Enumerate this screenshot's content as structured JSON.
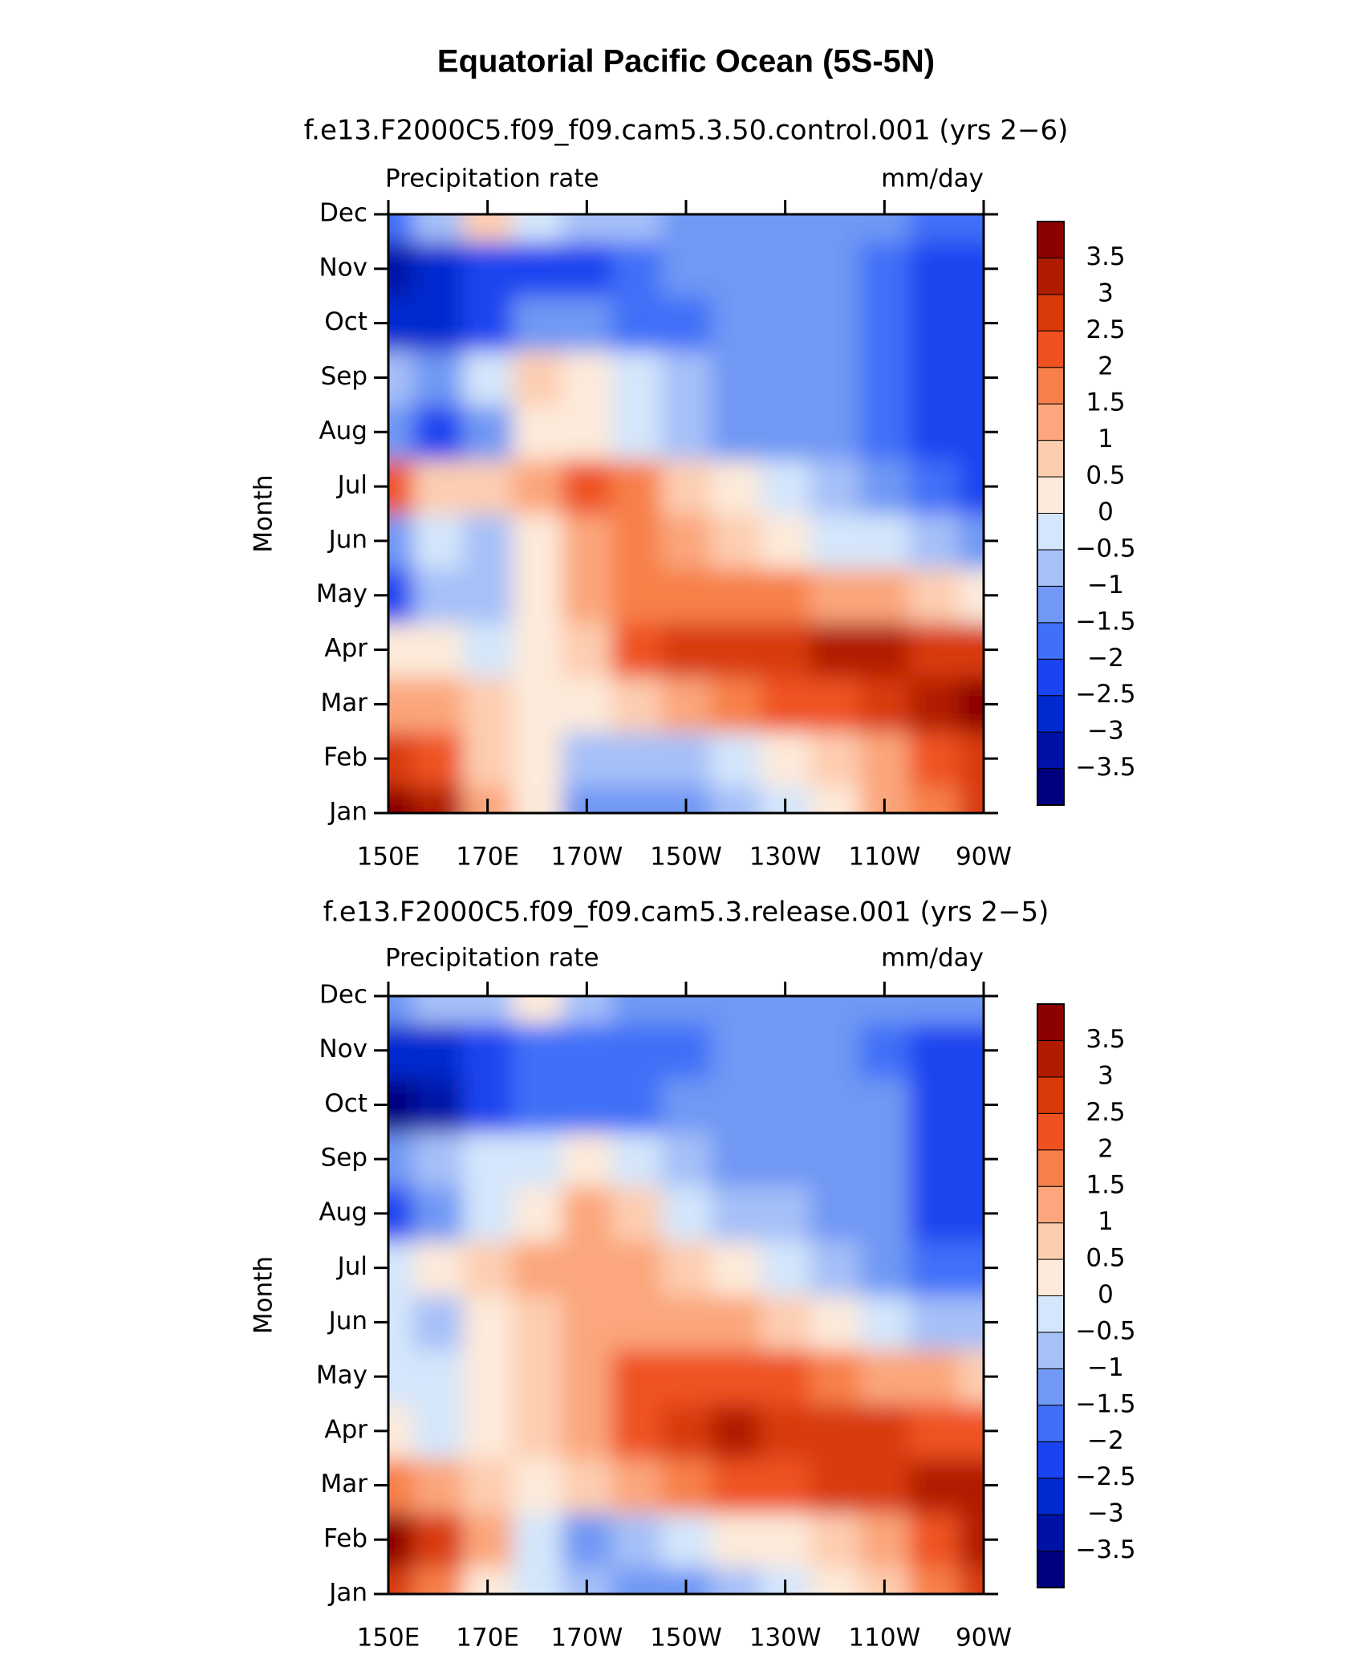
{
  "title": "Equatorial Pacific Ocean (5S-5N)",
  "chart_data": [
    {
      "type": "contour",
      "title": "f.e13.F2000C5.f09_f09.cam5.3.50.control.001 (yrs 2−6)",
      "left_label": "Precipitation rate",
      "right_label": "mm/day",
      "y_label": "Month",
      "x": [
        150,
        160,
        170,
        180,
        190,
        200,
        210,
        220,
        230,
        240,
        250,
        260,
        270
      ],
      "xlim": [
        150,
        270
      ],
      "xticks": [
        {
          "value": 150,
          "label": "150E"
        },
        {
          "value": 170,
          "label": "170E"
        },
        {
          "value": 190,
          "label": "170W"
        },
        {
          "value": 210,
          "label": "150W"
        },
        {
          "value": 230,
          "label": "130W"
        },
        {
          "value": 250,
          "label": "110W"
        },
        {
          "value": 270,
          "label": "90W"
        }
      ],
      "categories": [
        "Jan",
        "Feb",
        "Mar",
        "Apr",
        "May",
        "Jun",
        "Jul",
        "Aug",
        "Sep",
        "Oct",
        "Nov",
        "Dec"
      ],
      "z": [
        [
          3.8,
          3.2,
          1.2,
          0.2,
          -1,
          -1.2,
          -1,
          -0.6,
          -0.2,
          0.5,
          1.2,
          2,
          3
        ],
        [
          2.8,
          2.5,
          1,
          0.3,
          -0.7,
          -0.8,
          -0.5,
          0,
          0.5,
          1,
          1.5,
          2.2,
          3
        ],
        [
          1.5,
          1.2,
          0.7,
          0.3,
          0.2,
          1,
          1.5,
          2,
          2.3,
          2.5,
          3,
          3.5,
          3.8
        ],
        [
          0.5,
          0.2,
          -0.3,
          0.3,
          1,
          2.5,
          2.8,
          3,
          3,
          3.2,
          3.2,
          3,
          2.8
        ],
        [
          -2,
          -0.5,
          -0.5,
          0.5,
          1.3,
          2,
          2,
          2,
          1.8,
          1.5,
          1.2,
          1,
          0.5
        ],
        [
          -1,
          -0.3,
          -0.5,
          0.3,
          1.5,
          1.8,
          1.5,
          1,
          0.5,
          0,
          -0.3,
          -0.6,
          -1
        ],
        [
          2.5,
          0.8,
          0.8,
          1.3,
          2.3,
          1.8,
          1,
          0.2,
          -0.3,
          -0.8,
          -1.2,
          -1.5,
          -2
        ],
        [
          -1,
          -2,
          -1,
          0.3,
          0.5,
          0,
          -0.5,
          -1,
          -1.2,
          -1.3,
          -1.5,
          -2,
          -2.2
        ],
        [
          -0.8,
          -1.2,
          -0.3,
          1,
          0.3,
          -0.3,
          -0.8,
          -1,
          -1.2,
          -1.2,
          -1.5,
          -2,
          -2.2
        ],
        [
          -2.5,
          -2.5,
          -2,
          -1,
          -1.2,
          -1.5,
          -1.5,
          -1.4,
          -1.3,
          -1.3,
          -1.8,
          -2,
          -2.3
        ],
        [
          -3.3,
          -2.8,
          -2.2,
          -2,
          -2,
          -1.6,
          -1.3,
          -1.2,
          -1.2,
          -1.2,
          -1.8,
          -2,
          -2.3
        ],
        [
          -1.5,
          -0.5,
          0.7,
          -0.3,
          -0.5,
          -0.8,
          -1,
          -1,
          -1,
          -1,
          -1.3,
          -1.5,
          -1.8
        ]
      ],
      "levels": [
        {
          "value": -3.5,
          "label": "−3.5"
        },
        {
          "value": -3,
          "label": "−3"
        },
        {
          "value": -2.5,
          "label": "−2.5"
        },
        {
          "value": -2,
          "label": "−2"
        },
        {
          "value": -1.5,
          "label": "−1.5"
        },
        {
          "value": -1,
          "label": "−1"
        },
        {
          "value": -0.5,
          "label": "−0.5"
        },
        0,
        0.5,
        1,
        1.5,
        2,
        2.5,
        3,
        3.5
      ],
      "colors": [
        "#00007f",
        "#0012a6",
        "#002ad0",
        "#1a44f0",
        "#4070f8",
        "#7098f4",
        "#a6c0f8",
        "#d4e6fb",
        "#fdeada",
        "#fdcdb0",
        "#fba67c",
        "#f7804a",
        "#ef5220",
        "#d83a08",
        "#b01c02",
        "#8b0000"
      ]
    },
    {
      "type": "contour",
      "title": "f.e13.F2000C5.f09_f09.cam5.3.release.001 (yrs 2−5)",
      "left_label": "Precipitation rate",
      "right_label": "mm/day",
      "y_label": "Month",
      "x": [
        150,
        160,
        170,
        180,
        190,
        200,
        210,
        220,
        230,
        240,
        250,
        260,
        270
      ],
      "xlim": [
        150,
        270
      ],
      "xticks": [
        {
          "value": 150,
          "label": "150E"
        },
        {
          "value": 170,
          "label": "170E"
        },
        {
          "value": 190,
          "label": "170W"
        },
        {
          "value": 210,
          "label": "150W"
        },
        {
          "value": 230,
          "label": "130W"
        },
        {
          "value": 250,
          "label": "110W"
        },
        {
          "value": 270,
          "label": "90W"
        }
      ],
      "categories": [
        "Jan",
        "Feb",
        "Mar",
        "Apr",
        "May",
        "Jun",
        "Jul",
        "Aug",
        "Sep",
        "Oct",
        "Nov",
        "Dec"
      ],
      "z": [
        [
          2.8,
          2,
          0.5,
          0,
          -0.8,
          -1.2,
          -1,
          -0.6,
          -0.3,
          0.2,
          0.8,
          1.8,
          3
        ],
        [
          3.8,
          3,
          1.5,
          -0.3,
          -1,
          -0.7,
          -0.3,
          0.1,
          0.5,
          1,
          1.5,
          2.2,
          3.5
        ],
        [
          2,
          1.5,
          1,
          0.5,
          0.7,
          1.5,
          2,
          2.3,
          2.5,
          2.8,
          3,
          3.2,
          3.5
        ],
        [
          0.3,
          0,
          0.3,
          0.7,
          1.2,
          2.3,
          2.7,
          3.2,
          2.8,
          2.8,
          2.7,
          2.5,
          2.3
        ],
        [
          0,
          -0.3,
          0.3,
          0.8,
          1.2,
          2.3,
          2.5,
          2.5,
          2.2,
          1.8,
          1.5,
          1.2,
          0.8
        ],
        [
          -0.3,
          -0.5,
          0.3,
          0.8,
          1.2,
          1.5,
          1.5,
          1.2,
          0.8,
          0.3,
          -0.2,
          -0.5,
          -0.7
        ],
        [
          0,
          0.2,
          0.8,
          1.2,
          1.5,
          1.2,
          0.8,
          0.3,
          -0.2,
          -0.6,
          -1,
          -1.5,
          -1.8
        ],
        [
          -2,
          -1.2,
          -0.3,
          0.3,
          1.3,
          0.8,
          0,
          -0.5,
          -0.8,
          -1,
          -1.3,
          -2,
          -2
        ],
        [
          -1,
          -0.5,
          0,
          0,
          0.5,
          -0.3,
          -0.8,
          -1,
          -1.2,
          -1.2,
          -1.3,
          -2,
          -2
        ],
        [
          -3.5,
          -3.2,
          -2.3,
          -1.5,
          -1.8,
          -1.6,
          -1.4,
          -1.3,
          -1.2,
          -1.2,
          -1.4,
          -2,
          -2.2
        ],
        [
          -2.5,
          -2.8,
          -2,
          -1.8,
          -1.8,
          -1.7,
          -1.6,
          -1.3,
          -1.2,
          -1.2,
          -1.5,
          -2,
          -2
        ],
        [
          -1,
          -0.8,
          -0.5,
          0.3,
          -0.5,
          -1,
          -1.1,
          -1.1,
          -1.1,
          -1.1,
          -1,
          -1.2,
          -1.3
        ]
      ],
      "levels": [
        {
          "value": -3.5,
          "label": "−3.5"
        },
        {
          "value": -3,
          "label": "−3"
        },
        {
          "value": -2.5,
          "label": "−2.5"
        },
        {
          "value": -2,
          "label": "−2"
        },
        {
          "value": -1.5,
          "label": "−1.5"
        },
        {
          "value": -1,
          "label": "−1"
        },
        {
          "value": -0.5,
          "label": "−0.5"
        },
        0,
        0.5,
        1,
        1.5,
        2,
        2.5,
        3,
        3.5
      ],
      "colors": [
        "#00007f",
        "#0012a6",
        "#002ad0",
        "#1a44f0",
        "#4070f8",
        "#7098f4",
        "#a6c0f8",
        "#d4e6fb",
        "#fdeada",
        "#fdcdb0",
        "#fba67c",
        "#f7804a",
        "#ef5220",
        "#d83a08",
        "#b01c02",
        "#8b0000"
      ]
    }
  ]
}
